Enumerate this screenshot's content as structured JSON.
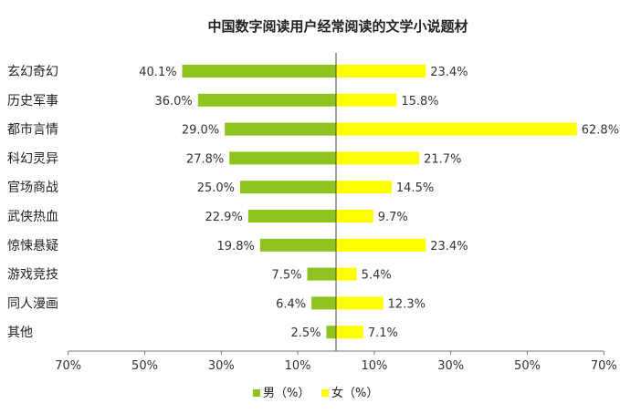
{
  "chart_data": {
    "type": "bar",
    "orientation": "horizontal-butterfly",
    "title": "中国数字阅读用户经常阅读的文学小说题材",
    "categories": [
      "玄幻奇幻",
      "历史军事",
      "都市言情",
      "科幻灵异",
      "官场商战",
      "武侠热血",
      "惊悚悬疑",
      "游戏竞技",
      "同人漫画",
      "其他"
    ],
    "series": [
      {
        "name": "男（%）",
        "values": [
          40.1,
          36.0,
          29.0,
          27.8,
          25.0,
          22.9,
          19.8,
          7.5,
          6.4,
          2.5
        ],
        "value_labels": [
          "40.1%",
          "36.0%",
          "29.0%",
          "27.8%",
          "25.0%",
          "22.9%",
          "19.8%",
          "7.5%",
          "6.4%",
          "2.5%"
        ],
        "color": "#8fc31f",
        "side": "left"
      },
      {
        "name": "女（%）",
        "values": [
          23.4,
          15.8,
          62.8,
          21.7,
          14.5,
          9.7,
          23.4,
          5.4,
          12.3,
          7.1
        ],
        "value_labels": [
          "23.4%",
          "15.8%",
          "62.8%",
          "21.7%",
          "14.5%",
          "9.7%",
          "23.4%",
          "5.4%",
          "12.3%",
          "7.1%"
        ],
        "color": "#ffff00",
        "side": "right"
      }
    ],
    "x_ticks": [
      {
        "value": -70,
        "label": "70%"
      },
      {
        "value": -50,
        "label": "50%"
      },
      {
        "value": -30,
        "label": "30%"
      },
      {
        "value": -10,
        "label": "10%"
      },
      {
        "value": 10,
        "label": "10%"
      },
      {
        "value": 30,
        "label": "30%"
      },
      {
        "value": 50,
        "label": "50%"
      },
      {
        "value": 70,
        "label": "70%"
      }
    ],
    "xlim": [
      -70,
      70
    ],
    "grid": false,
    "legend_position": "bottom-center"
  }
}
